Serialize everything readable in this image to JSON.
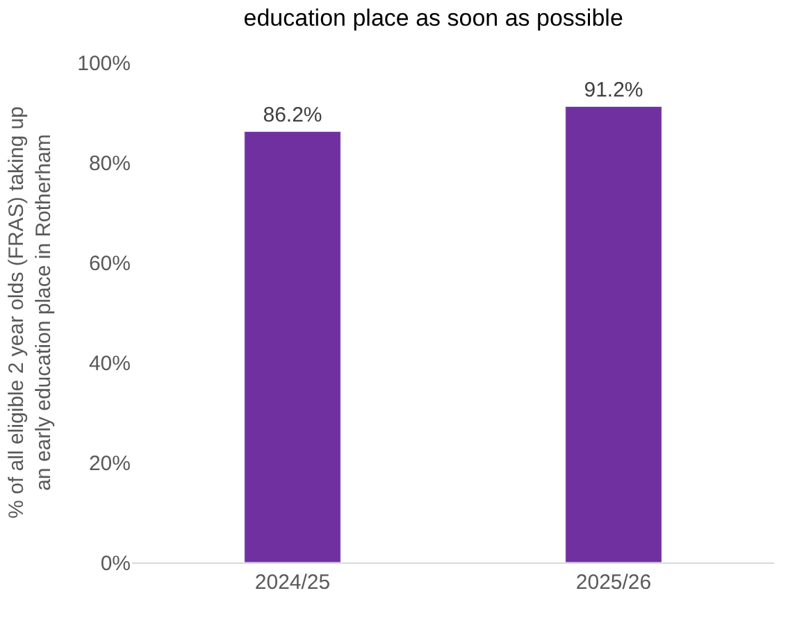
{
  "chart_data": {
    "type": "bar",
    "title": "education place as soon as possible",
    "ylabel": "% of all eligible 2 year olds (FRAS) taking up\nan early education place in Rotherham",
    "categories": [
      "2024/25",
      "2025/26"
    ],
    "values": [
      86.2,
      91.2
    ],
    "value_labels": [
      "86.2%",
      "91.2%"
    ],
    "color": "#7030a0",
    "ylim": [
      0,
      100
    ],
    "yticks": [
      {
        "value": 0,
        "label": "0%"
      },
      {
        "value": 20,
        "label": "20%"
      },
      {
        "value": 40,
        "label": "40%"
      },
      {
        "value": 60,
        "label": "60%"
      },
      {
        "value": 80,
        "label": "80%"
      },
      {
        "value": 100,
        "label": "100%"
      }
    ],
    "legend": false
  }
}
